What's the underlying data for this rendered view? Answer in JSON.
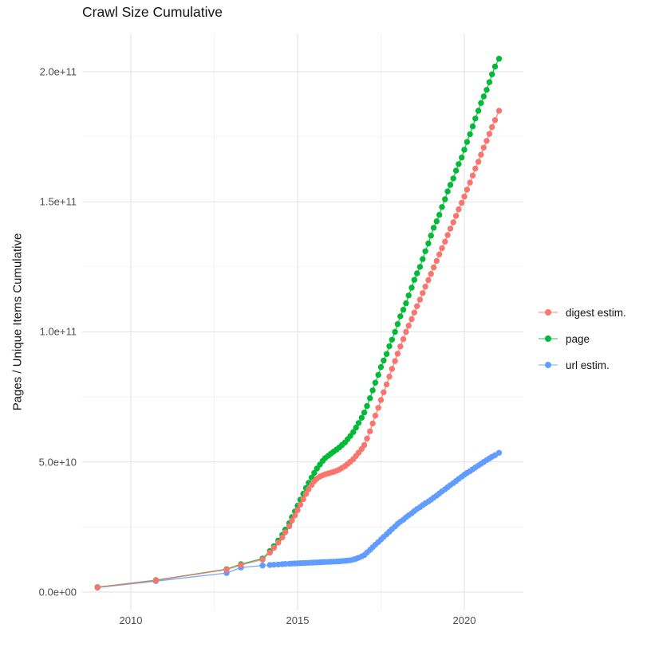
{
  "chart_data": {
    "type": "line",
    "title": "Crawl Size Cumulative",
    "xlabel": "",
    "ylabel": "Pages / Unique Items Cumulative",
    "legend_position": "right",
    "grid": true,
    "y_unit": "items (values stored in billions, 1e9)",
    "xlim": [
      2008.54,
      2021.77
    ],
    "ylim": [
      -7.05,
      214.7
    ],
    "x_ticks": [
      {
        "value": 2010,
        "label": "2010"
      },
      {
        "value": 2015,
        "label": "2015"
      },
      {
        "value": 2020,
        "label": "2020"
      }
    ],
    "x_minor": [
      2012.5,
      2017.5
    ],
    "y_ticks": [
      {
        "value": 0,
        "label": "0.0e+00"
      },
      {
        "value": 50,
        "label": "5.0e+10"
      },
      {
        "value": 100,
        "label": "1.0e+11"
      },
      {
        "value": 150,
        "label": "1.5e+11"
      },
      {
        "value": 200,
        "label": "2.0e+11"
      }
    ],
    "y_minor": [
      25,
      75,
      125,
      175
    ],
    "series": [
      {
        "name": "digest estim.",
        "color": "#F8766D",
        "points": [
          [
            2009.0,
            1.8
          ],
          [
            2010.75,
            4.5
          ],
          [
            2012.87,
            8.6
          ],
          [
            2013.3,
            10.4
          ],
          [
            2013.95,
            12.5
          ],
          [
            2014.17,
            15.2
          ],
          [
            2014.29,
            17
          ],
          [
            2014.42,
            19
          ],
          [
            2014.54,
            21
          ],
          [
            2014.63,
            23
          ],
          [
            2014.75,
            25.3
          ],
          [
            2014.83,
            27.5
          ],
          [
            2014.92,
            29.5
          ],
          [
            2015.0,
            31.5
          ],
          [
            2015.08,
            33.6
          ],
          [
            2015.17,
            35.7
          ],
          [
            2015.25,
            37.7
          ],
          [
            2015.33,
            39.5
          ],
          [
            2015.42,
            41.2
          ],
          [
            2015.5,
            42.6
          ],
          [
            2015.58,
            43.6
          ],
          [
            2015.67,
            44.4
          ],
          [
            2015.75,
            44.9
          ],
          [
            2015.83,
            45.3
          ],
          [
            2015.92,
            45.6
          ],
          [
            2016.0,
            45.9
          ],
          [
            2016.08,
            46.2
          ],
          [
            2016.17,
            46.6
          ],
          [
            2016.25,
            47.1
          ],
          [
            2016.33,
            47.7
          ],
          [
            2016.42,
            48.4
          ],
          [
            2016.5,
            49.2
          ],
          [
            2016.58,
            50.1
          ],
          [
            2016.67,
            51.1
          ],
          [
            2016.75,
            52.3
          ],
          [
            2016.83,
            53.6
          ],
          [
            2016.92,
            55
          ],
          [
            2017.0,
            56.5
          ],
          [
            2017.08,
            59
          ],
          [
            2017.17,
            61.8
          ],
          [
            2017.25,
            64.8
          ],
          [
            2017.33,
            67.8
          ],
          [
            2017.42,
            70.8
          ],
          [
            2017.5,
            73.8
          ],
          [
            2017.58,
            76.8
          ],
          [
            2017.67,
            79.8
          ],
          [
            2017.75,
            82.8
          ],
          [
            2017.83,
            85.8
          ],
          [
            2017.92,
            88.8
          ],
          [
            2018.0,
            91.6
          ],
          [
            2018.08,
            94.4
          ],
          [
            2018.17,
            97.2
          ],
          [
            2018.25,
            100
          ],
          [
            2018.33,
            102.4
          ],
          [
            2018.42,
            104.9
          ],
          [
            2018.5,
            107.4
          ],
          [
            2018.58,
            109.9
          ],
          [
            2018.67,
            112.4
          ],
          [
            2018.75,
            114.9
          ],
          [
            2018.83,
            117.4
          ],
          [
            2018.92,
            119.9
          ],
          [
            2019.0,
            122.3
          ],
          [
            2019.08,
            124.8
          ],
          [
            2019.17,
            127.3
          ],
          [
            2019.25,
            129.8
          ],
          [
            2019.33,
            132.2
          ],
          [
            2019.42,
            134.7
          ],
          [
            2019.5,
            137.2
          ],
          [
            2019.58,
            139.7
          ],
          [
            2019.67,
            142.1
          ],
          [
            2019.75,
            144.6
          ],
          [
            2019.83,
            147.1
          ],
          [
            2019.92,
            149.6
          ],
          [
            2020.0,
            152
          ],
          [
            2020.08,
            154.7
          ],
          [
            2020.17,
            157.4
          ],
          [
            2020.25,
            160.1
          ],
          [
            2020.33,
            162.8
          ],
          [
            2020.42,
            165.4
          ],
          [
            2020.5,
            168.1
          ],
          [
            2020.58,
            170.8
          ],
          [
            2020.67,
            173.4
          ],
          [
            2020.75,
            176.1
          ],
          [
            2020.83,
            178.7
          ],
          [
            2020.92,
            181.4
          ],
          [
            2021.04,
            185
          ]
        ]
      },
      {
        "name": "page",
        "color": "#00BA38",
        "points": [
          [
            2009.0,
            1.9
          ],
          [
            2010.75,
            4.6
          ],
          [
            2012.87,
            8.8
          ],
          [
            2013.3,
            10.7
          ],
          [
            2013.95,
            12.9
          ],
          [
            2014.17,
            15.8
          ],
          [
            2014.29,
            17.6
          ],
          [
            2014.42,
            19.8
          ],
          [
            2014.54,
            22
          ],
          [
            2014.63,
            24
          ],
          [
            2014.75,
            26.5
          ],
          [
            2014.83,
            28.8
          ],
          [
            2014.92,
            31
          ],
          [
            2015.0,
            33.2
          ],
          [
            2015.08,
            35.5
          ],
          [
            2015.17,
            37.8
          ],
          [
            2015.25,
            40
          ],
          [
            2015.33,
            42
          ],
          [
            2015.42,
            44
          ],
          [
            2015.5,
            45.8
          ],
          [
            2015.58,
            47.5
          ],
          [
            2015.67,
            49
          ],
          [
            2015.75,
            50.4
          ],
          [
            2015.83,
            51.5
          ],
          [
            2015.92,
            52.4
          ],
          [
            2016.0,
            53.2
          ],
          [
            2016.08,
            54
          ],
          [
            2016.17,
            54.8
          ],
          [
            2016.25,
            55.6
          ],
          [
            2016.33,
            56.5
          ],
          [
            2016.42,
            57.5
          ],
          [
            2016.5,
            58.7
          ],
          [
            2016.58,
            60
          ],
          [
            2016.67,
            61.5
          ],
          [
            2016.75,
            63.2
          ],
          [
            2016.83,
            65
          ],
          [
            2016.92,
            67
          ],
          [
            2017.0,
            69
          ],
          [
            2017.08,
            71.5
          ],
          [
            2017.17,
            74.5
          ],
          [
            2017.25,
            77.5
          ],
          [
            2017.33,
            80.5
          ],
          [
            2017.42,
            83.5
          ],
          [
            2017.5,
            86.5
          ],
          [
            2017.58,
            89
          ],
          [
            2017.67,
            91.5
          ],
          [
            2017.75,
            94.5
          ],
          [
            2017.83,
            97
          ],
          [
            2017.92,
            100
          ],
          [
            2018.0,
            103
          ],
          [
            2018.08,
            106
          ],
          [
            2018.17,
            108.5
          ],
          [
            2018.25,
            111
          ],
          [
            2018.33,
            114
          ],
          [
            2018.42,
            117
          ],
          [
            2018.5,
            120
          ],
          [
            2018.58,
            122.5
          ],
          [
            2018.67,
            125
          ],
          [
            2018.75,
            128
          ],
          [
            2018.83,
            131
          ],
          [
            2018.92,
            134
          ],
          [
            2019.0,
            137
          ],
          [
            2019.08,
            140
          ],
          [
            2019.17,
            142.5
          ],
          [
            2019.25,
            145
          ],
          [
            2019.33,
            148
          ],
          [
            2019.42,
            151
          ],
          [
            2019.5,
            154
          ],
          [
            2019.58,
            156.5
          ],
          [
            2019.67,
            159
          ],
          [
            2019.75,
            162
          ],
          [
            2019.83,
            164.5
          ],
          [
            2019.92,
            167
          ],
          [
            2020.0,
            170
          ],
          [
            2020.08,
            173
          ],
          [
            2020.17,
            176
          ],
          [
            2020.25,
            179
          ],
          [
            2020.33,
            182
          ],
          [
            2020.42,
            185
          ],
          [
            2020.5,
            188
          ],
          [
            2020.58,
            190.5
          ],
          [
            2020.67,
            193
          ],
          [
            2020.75,
            196
          ],
          [
            2020.83,
            199
          ],
          [
            2020.92,
            202
          ],
          [
            2021.04,
            205
          ]
        ]
      },
      {
        "name": "url estim.",
        "color": "#619CFF",
        "points": [
          [
            2009.0,
            1.7
          ],
          [
            2010.75,
            4.2
          ],
          [
            2012.87,
            7.3
          ],
          [
            2013.3,
            9.4
          ],
          [
            2013.95,
            10.2
          ],
          [
            2014.17,
            10.4
          ],
          [
            2014.29,
            10.5
          ],
          [
            2014.42,
            10.6
          ],
          [
            2014.54,
            10.7
          ],
          [
            2014.63,
            10.8
          ],
          [
            2014.75,
            10.9
          ],
          [
            2014.83,
            10.95
          ],
          [
            2014.92,
            11
          ],
          [
            2015.0,
            11.05
          ],
          [
            2015.08,
            11.1
          ],
          [
            2015.17,
            11.15
          ],
          [
            2015.25,
            11.2
          ],
          [
            2015.33,
            11.25
          ],
          [
            2015.42,
            11.3
          ],
          [
            2015.5,
            11.35
          ],
          [
            2015.58,
            11.4
          ],
          [
            2015.67,
            11.45
          ],
          [
            2015.75,
            11.5
          ],
          [
            2015.83,
            11.55
          ],
          [
            2015.92,
            11.6
          ],
          [
            2016.0,
            11.65
          ],
          [
            2016.08,
            11.7
          ],
          [
            2016.17,
            11.75
          ],
          [
            2016.25,
            11.8
          ],
          [
            2016.33,
            11.9
          ],
          [
            2016.42,
            12
          ],
          [
            2016.5,
            12.1
          ],
          [
            2016.58,
            12.2
          ],
          [
            2016.67,
            12.5
          ],
          [
            2016.75,
            12.8
          ],
          [
            2016.83,
            13.2
          ],
          [
            2016.92,
            13.7
          ],
          [
            2017.0,
            14.2
          ],
          [
            2017.08,
            15.2
          ],
          [
            2017.17,
            16.2
          ],
          [
            2017.25,
            17.2
          ],
          [
            2017.33,
            18.2
          ],
          [
            2017.42,
            19.2
          ],
          [
            2017.5,
            20.2
          ],
          [
            2017.58,
            21.2
          ],
          [
            2017.67,
            22.2
          ],
          [
            2017.75,
            23.2
          ],
          [
            2017.83,
            24.2
          ],
          [
            2017.92,
            25.2
          ],
          [
            2018.0,
            26.2
          ],
          [
            2018.08,
            27
          ],
          [
            2018.17,
            27.8
          ],
          [
            2018.25,
            28.7
          ],
          [
            2018.33,
            29.5
          ],
          [
            2018.42,
            30.3
          ],
          [
            2018.5,
            31.1
          ],
          [
            2018.58,
            31.9
          ],
          [
            2018.67,
            32.6
          ],
          [
            2018.75,
            33.4
          ],
          [
            2018.83,
            34.1
          ],
          [
            2018.92,
            34.8
          ],
          [
            2019.0,
            35.5
          ],
          [
            2019.08,
            36.3
          ],
          [
            2019.17,
            37.1
          ],
          [
            2019.25,
            37.9
          ],
          [
            2019.33,
            38.7
          ],
          [
            2019.42,
            39.5
          ],
          [
            2019.5,
            40.3
          ],
          [
            2019.58,
            41.1
          ],
          [
            2019.67,
            41.9
          ],
          [
            2019.75,
            42.7
          ],
          [
            2019.83,
            43.5
          ],
          [
            2019.92,
            44.3
          ],
          [
            2020.0,
            45.1
          ],
          [
            2020.08,
            45.8
          ],
          [
            2020.17,
            46.5
          ],
          [
            2020.25,
            47.2
          ],
          [
            2020.33,
            47.9
          ],
          [
            2020.42,
            48.6
          ],
          [
            2020.5,
            49.3
          ],
          [
            2020.58,
            50
          ],
          [
            2020.67,
            50.7
          ],
          [
            2020.75,
            51.4
          ],
          [
            2020.83,
            52
          ],
          [
            2020.92,
            52.6
          ],
          [
            2021.04,
            53.5
          ]
        ]
      }
    ]
  }
}
